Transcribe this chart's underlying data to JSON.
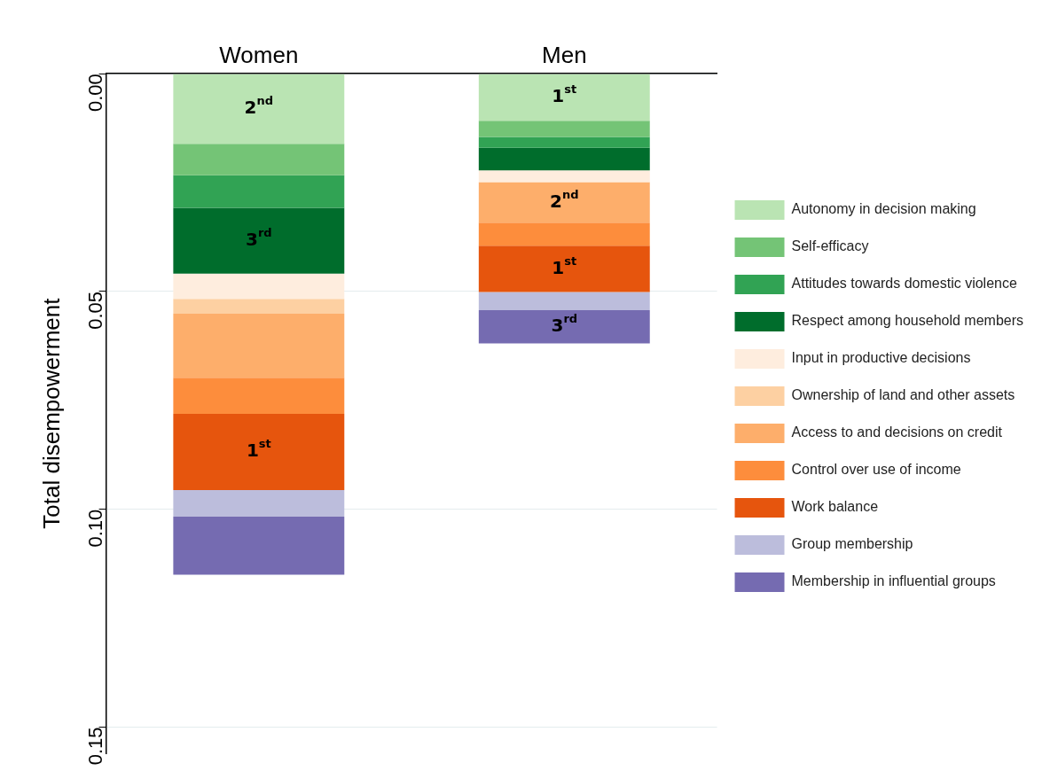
{
  "chart_data": {
    "type": "bar",
    "stacked": true,
    "categories": [
      "Women",
      "Men"
    ],
    "ylabel": "Total disempowerment",
    "ylim": [
      0.156,
      0
    ],
    "yticks": [
      {
        "value": 0,
        "label": "0.00"
      },
      {
        "value": 0.05,
        "label": "0.05"
      },
      {
        "value": 0.1,
        "label": "0.10"
      },
      {
        "value": 0.15,
        "label": "0.15"
      }
    ],
    "grid": "y",
    "legend": "right",
    "series": [
      {
        "name": "Autonomy in decision making",
        "color": "#bae4b3",
        "values": [
          0.0161,
          0.0108
        ]
      },
      {
        "name": "Self-efficacy",
        "color": "#74c476",
        "values": [
          0.0072,
          0.0037
        ]
      },
      {
        "name": "Attitudes towards domestic violence",
        "color": "#31a354",
        "values": [
          0.0075,
          0.0025
        ]
      },
      {
        "name": "Respect among household members",
        "color": "#006d2c",
        "values": [
          0.0151,
          0.0052
        ]
      },
      {
        "name": "Input in productive decisions",
        "color": "#feedde",
        "values": [
          0.0058,
          0.0027
        ]
      },
      {
        "name": "Ownership of land and other assets",
        "color": "#fdd0a2",
        "values": [
          0.0034,
          0
        ]
      },
      {
        "name": "Access to and decisions on credit",
        "color": "#fdae6b",
        "values": [
          0.0147,
          0.0093
        ]
      },
      {
        "name": "Control over use of income",
        "color": "#fd8d3c",
        "values": [
          0.0083,
          0.0053
        ]
      },
      {
        "name": "Work balance",
        "color": "#e6550d",
        "values": [
          0.0175,
          0.0106
        ]
      },
      {
        "name": "Group membership",
        "color": "#bcbddc",
        "values": [
          0.0061,
          0.0042
        ]
      },
      {
        "name": "Membership in influential groups",
        "color": "#756bb1",
        "values": [
          0.0133,
          0.0076
        ]
      }
    ],
    "annotations": [
      {
        "text": "2$^{nd}$",
        "x": "Women",
        "y": 0.0161
      },
      {
        "text": "3$^{rd}$",
        "x": "Women",
        "y": 0.0459
      },
      {
        "text": "1$^{st}$",
        "x": "Women",
        "y": 0.0956
      },
      {
        "text": "1$^{st}$",
        "x": "Men",
        "y": 0.0108
      },
      {
        "text": "2$^{nd}$",
        "x": "Men",
        "y": 0.0342
      },
      {
        "text": "1$^{st}$",
        "x": "Men",
        "y": 0.0501
      },
      {
        "text": "3$^{rd}$",
        "x": "Men",
        "y": 0.0619
      }
    ]
  }
}
